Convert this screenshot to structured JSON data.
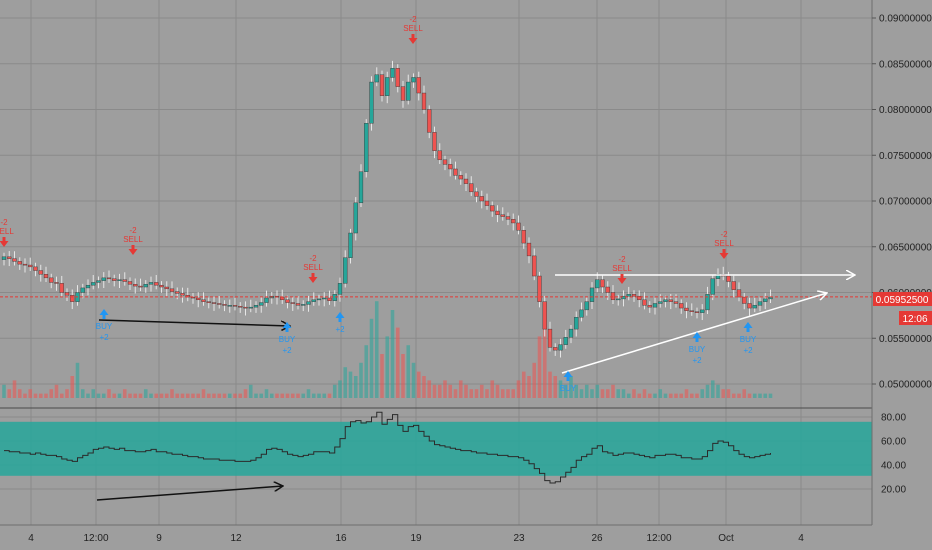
{
  "colors": {
    "background": "#9e9e9e",
    "grid": "#8a8a8a",
    "up": "#26a69a",
    "down": "#ef5350",
    "wick": "#e6e6e6",
    "buy": "#2196f3",
    "sell": "#e53935",
    "price_line": "#e53935",
    "indicator_band": "#26a69a",
    "indicator_line": "#2a2a2a",
    "white_line": "#ffffff",
    "black_arrow": "#111111"
  },
  "chart_data": [
    {
      "type": "candlestick",
      "title": "",
      "y_ticks": [
        "0.09000000",
        "0.08500000",
        "0.08000000",
        "0.07500000",
        "0.07000000",
        "0.06500000",
        "0.06000000",
        "0.05500000",
        "0.05000000"
      ],
      "ylim": [
        0.0485,
        0.0915
      ],
      "x_ticks": [
        "4",
        "12:00",
        "9",
        "12",
        "16",
        "19",
        "23",
        "26",
        "12:00",
        "Oct",
        "4"
      ],
      "last_price_label": "0.05952500",
      "countdown_label": "12:06",
      "last_price": 0.059525,
      "grid": true,
      "close_series": [
        0.0639,
        0.0637,
        0.0634,
        0.0631,
        0.063,
        0.0628,
        0.0624,
        0.062,
        0.0616,
        0.0611,
        0.061,
        0.06,
        0.0597,
        0.059,
        0.06,
        0.0605,
        0.0608,
        0.0611,
        0.0613,
        0.0616,
        0.0615,
        0.0613,
        0.0614,
        0.0612,
        0.0609,
        0.0607,
        0.0606,
        0.0609,
        0.0611,
        0.0608,
        0.0606,
        0.0604,
        0.0601,
        0.0599,
        0.0597,
        0.0595,
        0.0594,
        0.0592,
        0.059,
        0.0589,
        0.0588,
        0.0587,
        0.0586,
        0.0586,
        0.0585,
        0.0584,
        0.0583,
        0.0584,
        0.0586,
        0.0589,
        0.0594,
        0.0596,
        0.0595,
        0.0592,
        0.0589,
        0.0588,
        0.0586,
        0.0587,
        0.059,
        0.0592,
        0.0593,
        0.0594,
        0.0591,
        0.0598,
        0.061,
        0.0638,
        0.0665,
        0.0698,
        0.0732,
        0.0785,
        0.083,
        0.0838,
        0.0815,
        0.0835,
        0.0845,
        0.0825,
        0.081,
        0.083,
        0.0835,
        0.0818,
        0.08,
        0.0775,
        0.0755,
        0.0745,
        0.074,
        0.0735,
        0.0728,
        0.0724,
        0.0719,
        0.071,
        0.0705,
        0.07,
        0.0695,
        0.0689,
        0.0685,
        0.0683,
        0.068,
        0.0676,
        0.0668,
        0.0654,
        0.064,
        0.0618,
        0.059,
        0.056,
        0.054,
        0.0537,
        0.0543,
        0.0551,
        0.056,
        0.0573,
        0.0581,
        0.059,
        0.0605,
        0.0614,
        0.0606,
        0.06,
        0.0592,
        0.0593,
        0.0596,
        0.0598,
        0.0596,
        0.0592,
        0.0586,
        0.0584,
        0.0588,
        0.059,
        0.0592,
        0.059,
        0.0588,
        0.0583,
        0.058,
        0.0579,
        0.0578,
        0.0581,
        0.0598,
        0.0615,
        0.062,
        0.0618,
        0.0612,
        0.0603,
        0.0595,
        0.0588,
        0.0583,
        0.0586,
        0.059,
        0.0593,
        0.0595
      ],
      "volume_series": [
        3,
        2,
        4,
        2,
        1,
        2,
        1,
        1,
        1,
        2,
        3,
        1,
        2,
        5,
        8,
        2,
        1,
        2,
        1,
        1,
        2,
        1,
        1,
        2,
        1,
        1,
        1,
        2,
        1,
        1,
        1,
        1,
        2,
        1,
        1,
        1,
        1,
        1,
        2,
        1,
        1,
        1,
        1,
        1,
        1,
        1,
        2,
        3,
        1,
        1,
        2,
        1,
        1,
        1,
        1,
        1,
        1,
        1,
        2,
        1,
        1,
        1,
        1,
        3,
        4,
        7,
        6,
        5,
        8,
        12,
        18,
        22,
        10,
        14,
        20,
        16,
        10,
        12,
        8,
        6,
        5,
        4,
        3,
        3,
        4,
        3,
        2,
        4,
        3,
        2,
        2,
        3,
        2,
        4,
        3,
        2,
        2,
        2,
        4,
        6,
        5,
        8,
        14,
        20,
        6,
        5,
        4,
        3,
        5,
        3,
        2,
        3,
        2,
        3,
        2,
        2,
        3,
        2,
        2,
        1,
        2,
        1,
        2,
        1,
        1,
        2,
        1,
        1,
        1,
        1,
        2,
        1,
        1,
        2,
        3,
        4,
        3,
        2,
        2,
        1,
        1,
        2,
        1,
        1,
        1,
        1,
        1
      ],
      "signals": [
        {
          "kind": "sell",
          "lines": [
            "-2",
            "SELL"
          ]
        },
        {
          "kind": "sell",
          "lines": [
            "-2",
            "SELL"
          ]
        },
        {
          "kind": "sell",
          "lines": [
            "-2",
            "SELL"
          ]
        },
        {
          "kind": "sell",
          "lines": [
            "-2",
            "SELL"
          ]
        },
        {
          "kind": "sell",
          "lines": [
            "-2",
            "SELL"
          ]
        },
        {
          "kind": "sell",
          "lines": [
            "-2",
            "SELL"
          ]
        },
        {
          "kind": "buy",
          "lines": [
            "BUY",
            "+2"
          ]
        },
        {
          "kind": "buy",
          "lines": [
            "BUY",
            "+2"
          ]
        },
        {
          "kind": "buy",
          "lines": [
            "+2"
          ]
        },
        {
          "kind": "buy",
          "lines": [
            "BUY"
          ]
        },
        {
          "kind": "buy",
          "lines": [
            "BUY",
            "+2"
          ]
        },
        {
          "kind": "buy",
          "lines": [
            "BUY",
            "+2"
          ]
        }
      ]
    },
    {
      "type": "line",
      "title": "",
      "y_ticks": [
        "80.00",
        "60.00",
        "40.00",
        "20.00"
      ],
      "ylim": [
        15,
        88
      ],
      "band": [
        31,
        76
      ],
      "values": [
        52,
        51,
        51,
        50,
        50,
        49,
        50,
        49,
        48,
        48,
        47,
        45,
        44,
        43,
        46,
        48,
        50,
        53,
        54,
        55,
        54,
        53,
        54,
        52,
        52,
        51,
        51,
        52,
        53,
        51,
        51,
        50,
        49,
        49,
        48,
        47,
        47,
        46,
        45,
        45,
        45,
        44,
        44,
        44,
        43,
        43,
        43,
        44,
        46,
        49,
        53,
        54,
        53,
        51,
        49,
        48,
        47,
        48,
        49,
        51,
        51,
        51,
        50,
        55,
        62,
        72,
        76,
        77,
        75,
        76,
        80,
        84,
        74,
        78,
        82,
        73,
        68,
        72,
        73,
        68,
        64,
        60,
        57,
        56,
        55,
        54,
        53,
        52,
        52,
        51,
        50,
        50,
        49,
        49,
        48,
        48,
        47,
        47,
        46,
        44,
        41,
        37,
        33,
        27,
        25,
        26,
        30,
        34,
        38,
        44,
        47,
        49,
        54,
        56,
        51,
        50,
        48,
        49,
        50,
        50,
        49,
        48,
        47,
        46,
        48,
        48,
        49,
        49,
        48,
        46,
        46,
        45,
        45,
        47,
        52,
        58,
        60,
        59,
        56,
        52,
        49,
        47,
        46,
        47,
        48,
        49,
        50
      ]
    }
  ]
}
